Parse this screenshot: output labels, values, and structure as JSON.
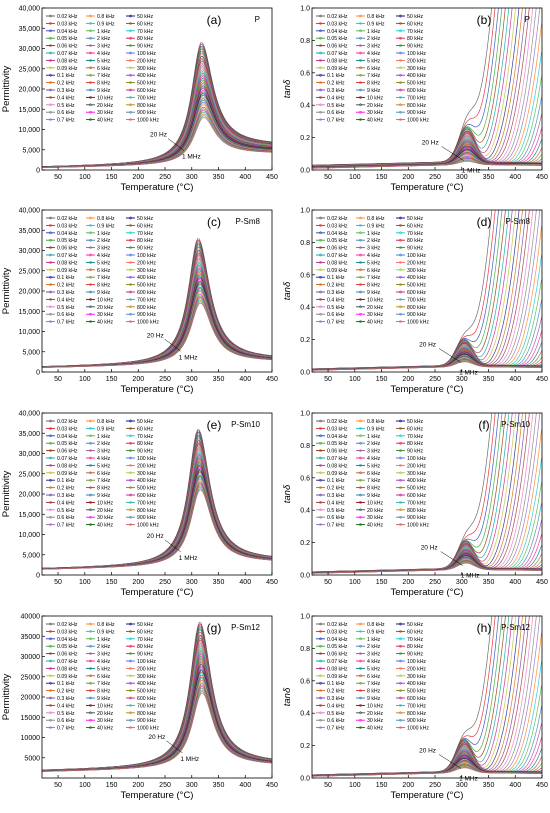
{
  "legend_freqs": [
    "0.02 kHz",
    "0.03 kHz",
    "0.04 kHz",
    "0.05 kHz",
    "0.06 kHz",
    "0.07 kHz",
    "0.08 kHz",
    "0.09 kHz",
    "0.1 kHz",
    "0.2 kHz",
    "0.3 kHz",
    "0.4 kHz",
    "0.5 kHz",
    "0.6 kHz",
    "0.7 kHz",
    "0.8 kHz",
    "0.9 kHz",
    "1 kHz",
    "2 kHz",
    "3 kHz",
    "4 kHz",
    "5 kHz",
    "6 kHz",
    "7 kHz",
    "8 kHz",
    "9 kHz",
    "10 kHz",
    "20 kHz",
    "30 kHz",
    "40 kHz",
    "50 kHz",
    "60 kHz",
    "70 kHz",
    "80 kHz",
    "90 kHz",
    "100 kHz",
    "200 kHz",
    "300 kHz",
    "400 kHz",
    "500 kHz",
    "600 kHz",
    "700 kHz",
    "800 kHz",
    "900 kHz",
    "1000 kHz"
  ],
  "legend_colors": [
    "#555555",
    "#e41a1c",
    "#1f3fbf",
    "#2ca02c",
    "#8c2d04",
    "#00a0a0",
    "#c51b8a",
    "#bcbd22",
    "#1a1a8c",
    "#d95f02",
    "#6a3d9a",
    "#a52a2a",
    "#e377c2",
    "#7f7f7f",
    "#9467bd",
    "#ff7f0e",
    "#17becf",
    "#4daf4a",
    "#377eb8",
    "#984ea3",
    "#ff1493",
    "#008080",
    "#b15928",
    "#6b8e23",
    "#d62728",
    "#1f77b4",
    "#8b0000",
    "#2f4f4f",
    "#ff00ff",
    "#006400",
    "#000080",
    "#8b4513",
    "#00ced1",
    "#dc143c",
    "#228b22",
    "#4169e1",
    "#ff6347",
    "#9acd32",
    "#9932cc",
    "#808000",
    "#c71585",
    "#20b2aa",
    "#b8860b",
    "#4682b4",
    "#cd5c5c"
  ],
  "annotations": {
    "low_freq": "20 Hz",
    "high_freq": "1 MHz"
  },
  "chart_data": [
    {
      "type": "line",
      "panel_label": "(a)",
      "sample": "P",
      "xlabel": "Temperature (°C)",
      "ylabel": "Permittivity",
      "xlim": [
        20,
        450
      ],
      "ylim": [
        0,
        40000
      ],
      "xticks": [
        50,
        100,
        150,
        200,
        250,
        300,
        350,
        400,
        450
      ],
      "yticks": [
        0,
        5000,
        10000,
        15000,
        20000,
        25000,
        30000,
        35000,
        40000
      ],
      "ytick_labels": [
        "0",
        "5,000",
        "10,000",
        "15,000",
        "20,000",
        "25,000",
        "30,000",
        "35,000",
        "40,000"
      ],
      "peak_temperature": 318,
      "peak_values": {
        "20 Hz": 31500,
        "1 MHz": 13000
      },
      "baseline_values": {
        "20 Hz": 700,
        "1 MHz": 500
      },
      "high_temp_values": {
        "20 Hz": 6000,
        "1 MHz": 4000
      },
      "legend_placement": "top-left"
    },
    {
      "type": "line",
      "panel_label": "(b)",
      "sample": "P",
      "xlabel": "Temperature (°C)",
      "ylabel": "tanδ",
      "xlim": [
        20,
        450
      ],
      "ylim": [
        0,
        1.0
      ],
      "xticks": [
        50,
        100,
        150,
        200,
        250,
        300,
        350,
        400,
        450
      ],
      "yticks": [
        0.0,
        0.2,
        0.4,
        0.6,
        0.8,
        1.0
      ],
      "ytick_labels": [
        "0.0",
        "0.2",
        "0.4",
        "0.6",
        "0.8",
        "1.0"
      ],
      "peak_temperature": 310,
      "peak_values": {
        "20 Hz": 0.26,
        "1 MHz": 0.03
      },
      "baseline_values": {
        "20 Hz": 0.03,
        "1 MHz": 0.01
      },
      "legend_placement": "top-left"
    },
    {
      "type": "line",
      "panel_label": "(c)",
      "sample": "P-Sm8",
      "xlabel": "Temperature (°C)",
      "ylabel": "Permittivity",
      "xlim": [
        20,
        450
      ],
      "ylim": [
        0,
        40000
      ],
      "xticks": [
        50,
        100,
        150,
        200,
        250,
        300,
        350,
        400,
        450
      ],
      "yticks": [
        0,
        5000,
        10000,
        15000,
        20000,
        25000,
        30000,
        35000,
        40000
      ],
      "ytick_labels": [
        "0",
        "5,000",
        "10,000",
        "15,000",
        "20,000",
        "25,000",
        "30,000",
        "35,000",
        "40,000"
      ],
      "peak_temperature": 312,
      "peak_values": {
        "20 Hz": 33000,
        "1 MHz": 17000
      },
      "baseline_values": {
        "20 Hz": 1200,
        "1 MHz": 1000
      },
      "high_temp_values": {
        "20 Hz": 3000,
        "1 MHz": 2500
      },
      "legend_placement": "top-left"
    },
    {
      "type": "line",
      "panel_label": "(d)",
      "sample": "P-Sm8",
      "xlabel": "Temperature (°C)",
      "ylabel": "tanδ",
      "xlim": [
        20,
        450
      ],
      "ylim": [
        0,
        1.0
      ],
      "xticks": [
        50,
        100,
        150,
        200,
        250,
        300,
        350,
        400,
        450
      ],
      "yticks": [
        0.0,
        0.2,
        0.4,
        0.6,
        0.8,
        1.0
      ],
      "ytick_labels": [
        "0.0",
        "0.2",
        "0.4",
        "0.6",
        "0.8",
        "1.0"
      ],
      "peak_temperature": 305,
      "peak_values": {
        "20 Hz": 0.19,
        "1 MHz": 0.04
      },
      "baseline_values": {
        "20 Hz": 0.02,
        "1 MHz": 0.01
      },
      "legend_placement": "top-left"
    },
    {
      "type": "line",
      "panel_label": "(e)",
      "sample": "P-Sm10",
      "xlabel": "Temperature (°C)",
      "ylabel": "Permittivity",
      "xlim": [
        20,
        450
      ],
      "ylim": [
        0,
        40000
      ],
      "xticks": [
        50,
        100,
        150,
        200,
        250,
        300,
        350,
        400,
        450
      ],
      "yticks": [
        0,
        5000,
        10000,
        15000,
        20000,
        25000,
        30000,
        35000,
        40000
      ],
      "ytick_labels": [
        "0",
        "5,000",
        "10,000",
        "15,000",
        "20,000",
        "25,000",
        "30,000",
        "35,000",
        "40,000"
      ],
      "peak_temperature": 312,
      "peak_values": {
        "20 Hz": 36000,
        "1 MHz": 21000
      },
      "baseline_values": {
        "20 Hz": 1500,
        "1 MHz": 1300
      },
      "high_temp_values": {
        "20 Hz": 3500,
        "1 MHz": 3000
      },
      "legend_placement": "top-left"
    },
    {
      "type": "line",
      "panel_label": "(f)",
      "sample": "P-Sm10",
      "xlabel": "Temperature (°C)",
      "ylabel": "tanδ",
      "xlim": [
        20,
        450
      ],
      "ylim": [
        0,
        1.0
      ],
      "xticks": [
        50,
        100,
        150,
        200,
        250,
        300,
        350,
        400,
        450
      ],
      "yticks": [
        0.0,
        0.2,
        0.4,
        0.6,
        0.8,
        1.0
      ],
      "ytick_labels": [
        "0.0",
        "0.2",
        "0.4",
        "0.6",
        "0.8",
        "1.0"
      ],
      "peak_temperature": 308,
      "peak_values": {
        "20 Hz": 0.2,
        "1 MHz": 0.05
      },
      "baseline_values": {
        "20 Hz": 0.02,
        "1 MHz": 0.01
      },
      "legend_placement": "top-left"
    },
    {
      "type": "line",
      "panel_label": "(g)",
      "sample": "P-Sm12",
      "xlabel": "Temperature (°C)",
      "ylabel": "Permittivity",
      "xlim": [
        20,
        450
      ],
      "ylim": [
        0,
        40000
      ],
      "xticks": [
        50,
        100,
        150,
        200,
        250,
        300,
        350,
        400,
        450
      ],
      "yticks": [
        5000,
        10000,
        15000,
        20000,
        25000,
        30000,
        35000,
        40000
      ],
      "ytick_labels": [
        "5000",
        "10000",
        "15000",
        "20000",
        "25000",
        "30000",
        "35000",
        "40000"
      ],
      "peak_temperature": 315,
      "peak_values": {
        "20 Hz": 38500,
        "1 MHz": 21000
      },
      "baseline_values": {
        "20 Hz": 1800,
        "1 MHz": 1500
      },
      "high_temp_values": {
        "20 Hz": 3500,
        "1 MHz": 3000
      },
      "legend_placement": "top-left"
    },
    {
      "type": "line",
      "panel_label": "(h)",
      "sample": "P-Sm12",
      "xlabel": "Temperature (°C)",
      "ylabel": "tanδ",
      "xlim": [
        20,
        450
      ],
      "ylim": [
        0,
        1.0
      ],
      "xticks": [
        50,
        100,
        150,
        200,
        250,
        300,
        350,
        400,
        450
      ],
      "yticks": [
        0.0,
        0.2,
        0.4,
        0.6,
        0.8,
        1.0
      ],
      "ytick_labels": [
        "0.0",
        "0.2",
        "0.4",
        "0.6",
        "0.8",
        "1.0"
      ],
      "peak_temperature": 305,
      "peak_values": {
        "20 Hz": 0.23,
        "1 MHz": 0.04
      },
      "baseline_values": {
        "20 Hz": 0.02,
        "1 MHz": 0.01
      },
      "legend_placement": "top-left"
    }
  ]
}
